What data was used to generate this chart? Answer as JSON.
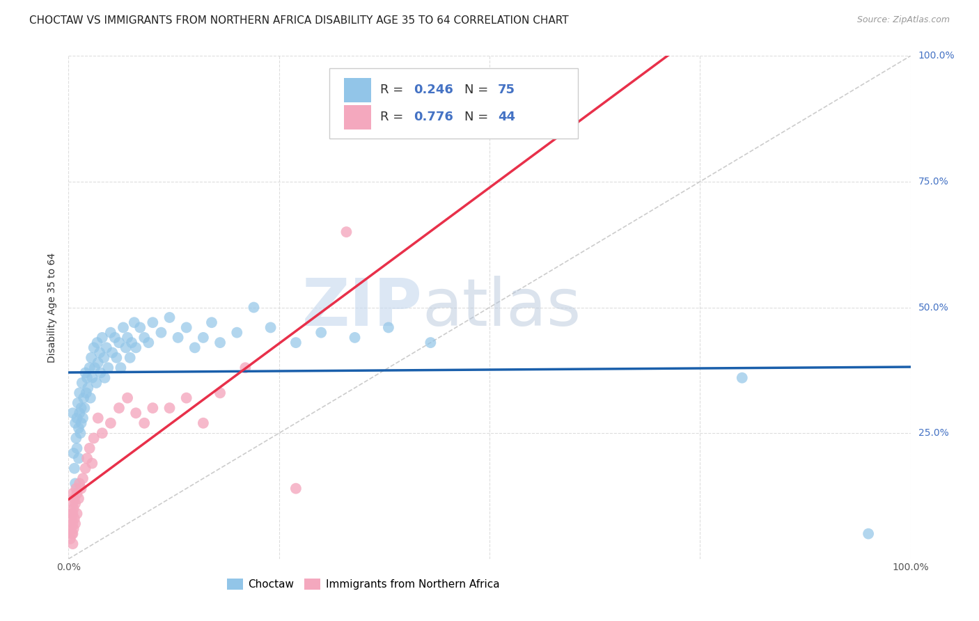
{
  "title": "CHOCTAW VS IMMIGRANTS FROM NORTHERN AFRICA DISABILITY AGE 35 TO 64 CORRELATION CHART",
  "source": "Source: ZipAtlas.com",
  "ylabel": "Disability Age 35 to 64",
  "xlim": [
    0,
    1.0
  ],
  "ylim": [
    0,
    1.0
  ],
  "ytick_positions": [
    0,
    0.25,
    0.5,
    0.75,
    1.0
  ],
  "ytick_labels_right": [
    "",
    "25.0%",
    "50.0%",
    "75.0%",
    "100.0%"
  ],
  "watermark_zip": "ZIP",
  "watermark_atlas": "atlas",
  "choctaw_R": 0.246,
  "choctaw_N": 75,
  "immigrants_R": 0.776,
  "immigrants_N": 44,
  "choctaw_color": "#92C5E8",
  "immigrants_color": "#F4A8BE",
  "choctaw_line_color": "#1A5FAB",
  "immigrants_line_color": "#E8304A",
  "diagonal_color": "#CCCCCC",
  "background_color": "#FFFFFF",
  "grid_color": "#DDDDDD",
  "choctaw_scatter_x": [
    0.005,
    0.006,
    0.007,
    0.008,
    0.008,
    0.009,
    0.01,
    0.01,
    0.011,
    0.012,
    0.012,
    0.013,
    0.013,
    0.014,
    0.015,
    0.015,
    0.016,
    0.017,
    0.018,
    0.019,
    0.02,
    0.021,
    0.022,
    0.023,
    0.025,
    0.026,
    0.027,
    0.028,
    0.03,
    0.031,
    0.033,
    0.034,
    0.035,
    0.037,
    0.038,
    0.04,
    0.042,
    0.043,
    0.045,
    0.047,
    0.05,
    0.052,
    0.055,
    0.057,
    0.06,
    0.062,
    0.065,
    0.068,
    0.07,
    0.073,
    0.075,
    0.078,
    0.08,
    0.085,
    0.09,
    0.095,
    0.1,
    0.11,
    0.12,
    0.13,
    0.14,
    0.15,
    0.16,
    0.17,
    0.18,
    0.2,
    0.22,
    0.24,
    0.27,
    0.3,
    0.34,
    0.38,
    0.43,
    0.8,
    0.95
  ],
  "choctaw_scatter_y": [
    0.29,
    0.21,
    0.18,
    0.15,
    0.27,
    0.24,
    0.28,
    0.22,
    0.31,
    0.26,
    0.2,
    0.29,
    0.33,
    0.25,
    0.3,
    0.27,
    0.35,
    0.28,
    0.32,
    0.3,
    0.37,
    0.33,
    0.36,
    0.34,
    0.38,
    0.32,
    0.4,
    0.36,
    0.42,
    0.38,
    0.35,
    0.43,
    0.39,
    0.41,
    0.37,
    0.44,
    0.4,
    0.36,
    0.42,
    0.38,
    0.45,
    0.41,
    0.44,
    0.4,
    0.43,
    0.38,
    0.46,
    0.42,
    0.44,
    0.4,
    0.43,
    0.47,
    0.42,
    0.46,
    0.44,
    0.43,
    0.47,
    0.45,
    0.48,
    0.44,
    0.46,
    0.42,
    0.44,
    0.47,
    0.43,
    0.45,
    0.5,
    0.46,
    0.43,
    0.45,
    0.44,
    0.46,
    0.43,
    0.36,
    0.05
  ],
  "immigrants_scatter_x": [
    0.002,
    0.003,
    0.003,
    0.004,
    0.004,
    0.005,
    0.005,
    0.005,
    0.005,
    0.005,
    0.005,
    0.006,
    0.006,
    0.007,
    0.007,
    0.008,
    0.008,
    0.009,
    0.01,
    0.01,
    0.012,
    0.013,
    0.015,
    0.017,
    0.02,
    0.022,
    0.025,
    0.028,
    0.03,
    0.035,
    0.04,
    0.05,
    0.06,
    0.07,
    0.08,
    0.09,
    0.1,
    0.12,
    0.14,
    0.16,
    0.18,
    0.21,
    0.27,
    0.33
  ],
  "immigrants_scatter_y": [
    0.04,
    0.06,
    0.08,
    0.05,
    0.09,
    0.03,
    0.05,
    0.07,
    0.09,
    0.11,
    0.13,
    0.06,
    0.1,
    0.08,
    0.12,
    0.07,
    0.11,
    0.14,
    0.09,
    0.13,
    0.12,
    0.15,
    0.14,
    0.16,
    0.18,
    0.2,
    0.22,
    0.19,
    0.24,
    0.28,
    0.25,
    0.27,
    0.3,
    0.32,
    0.29,
    0.27,
    0.3,
    0.3,
    0.32,
    0.27,
    0.33,
    0.38,
    0.14,
    0.65
  ],
  "title_fontsize": 11,
  "axis_label_fontsize": 10,
  "tick_fontsize": 10,
  "legend_fontsize": 12,
  "source_fontsize": 9
}
